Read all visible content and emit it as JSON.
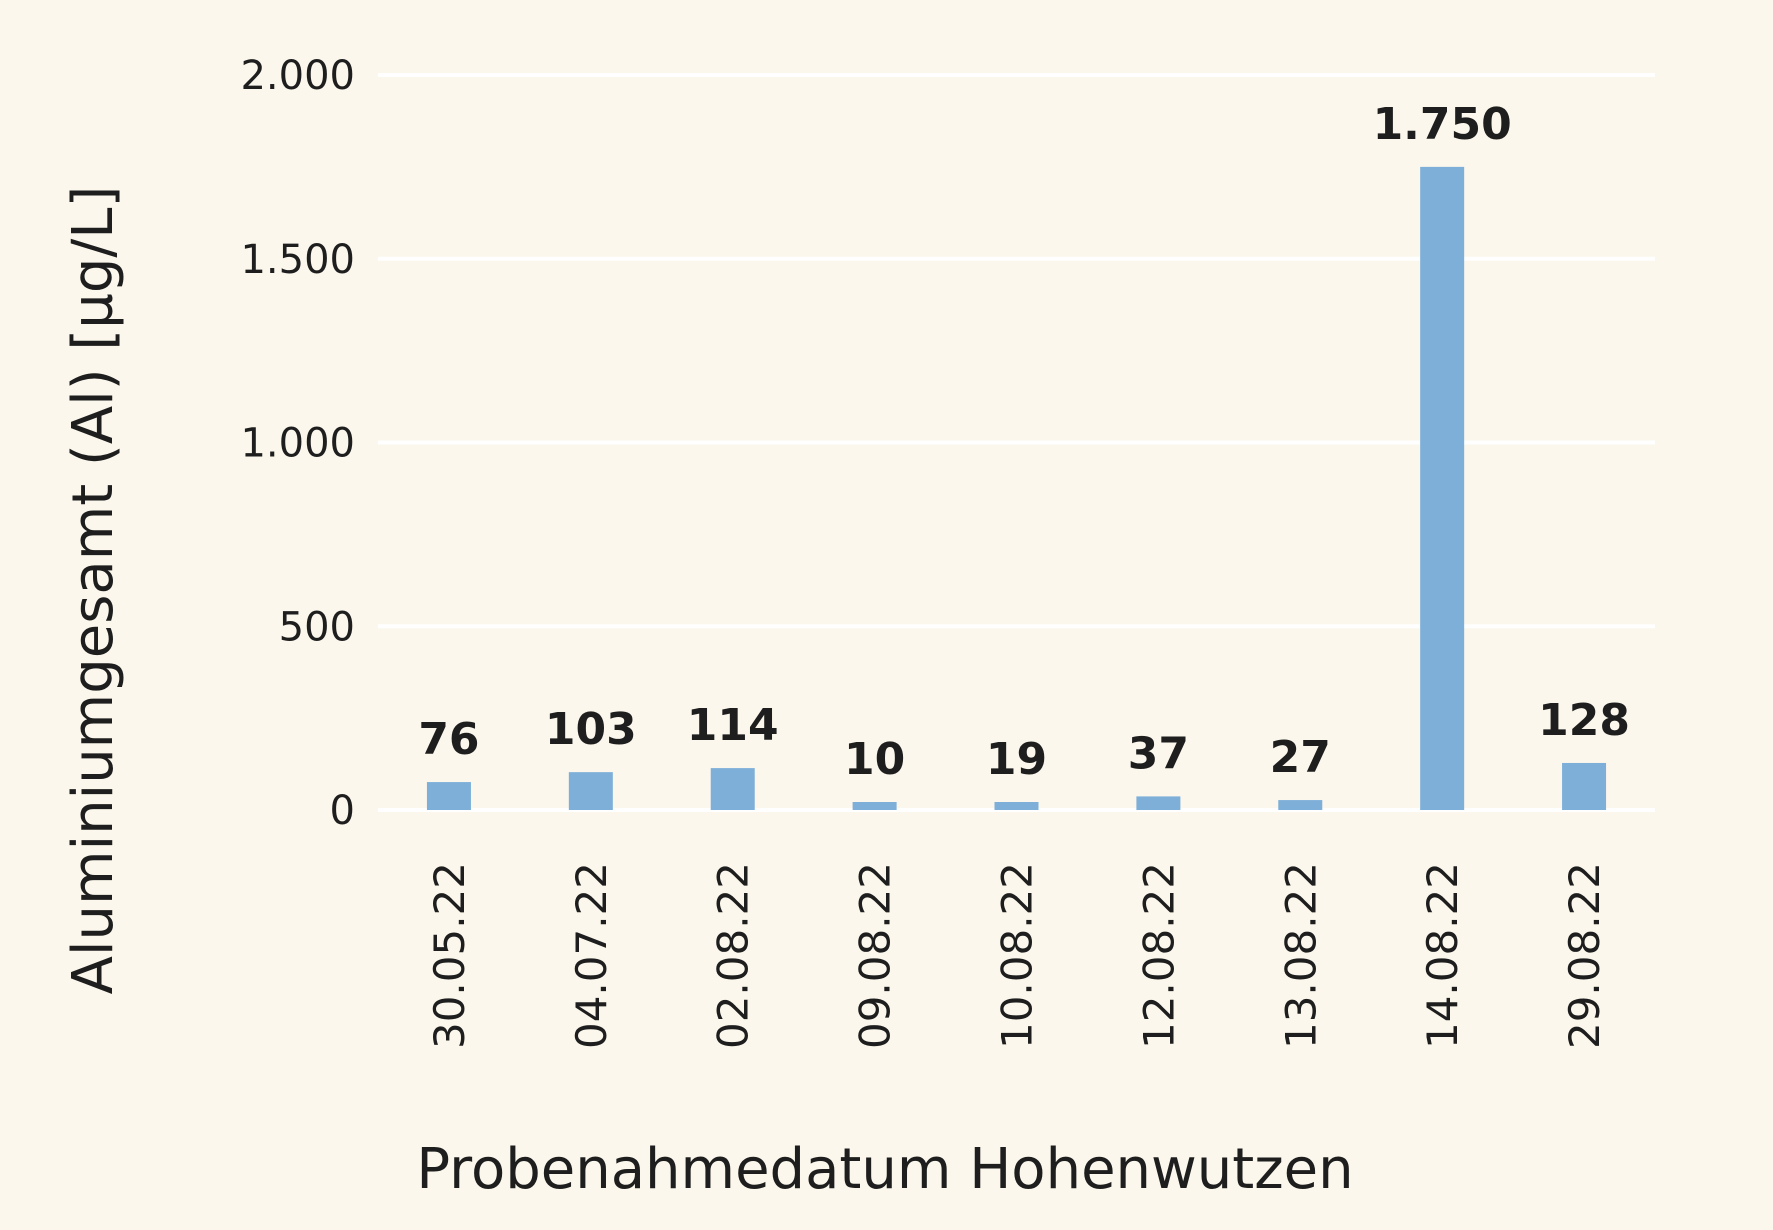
{
  "chart_data": {
    "type": "bar",
    "categories": [
      "30.05.22",
      "04.07.22",
      "02.08.22",
      "09.08.22",
      "10.08.22",
      "12.08.22",
      "13.08.22",
      "14.08.22",
      "29.08.22"
    ],
    "values": [
      76,
      103,
      114,
      10,
      19,
      37,
      27,
      1750,
      128
    ],
    "data_labels": [
      "76",
      "103",
      "114",
      "10",
      "19",
      "37",
      "27",
      "1.750",
      "128"
    ],
    "title": "",
    "xlabel": "Probenahmedatum Hohenwutzen",
    "ylabel": "Aluminiumgesamt (Al) [µg/L]",
    "ylim": [
      0,
      2000
    ],
    "yticks": [
      0,
      500,
      1000,
      1500,
      2000
    ],
    "ytick_labels": [
      "0",
      "500",
      "1.000",
      "1.500",
      "2.000"
    ],
    "grid": true,
    "legend": "none",
    "colors": {
      "bar": "#7dafd9",
      "background": "#fbf7ec",
      "gridline": "#ffffff",
      "text": "#1e1e1e"
    }
  }
}
